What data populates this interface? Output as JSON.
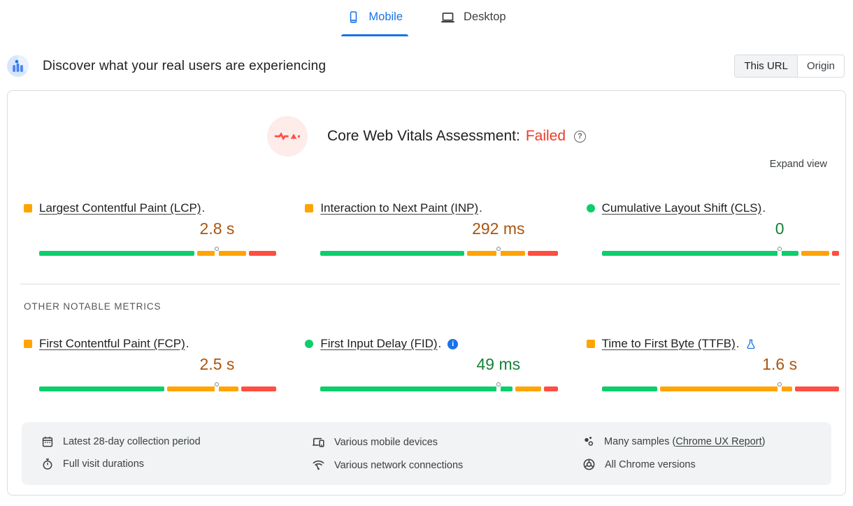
{
  "tabs": [
    {
      "label": "Mobile",
      "active": true
    },
    {
      "label": "Desktop",
      "active": false
    }
  ],
  "header": {
    "title": "Discover what your real users are experiencing",
    "scope_options": [
      "This URL",
      "Origin"
    ],
    "selected_scope": "This URL"
  },
  "assessment": {
    "title": "Core Web Vitals Assessment:",
    "result": "Failed",
    "result_color": "#eb3b28",
    "help_glyph": "?",
    "expand_label": "Expand view"
  },
  "section_label": "OTHER NOTABLE METRICS",
  "colors": {
    "good": "#0cce6b",
    "needs_improvement": "#ffa400",
    "poor": "#ff4e42",
    "accent_blue": "#1a73e8",
    "value_orange": "#a9550e",
    "value_green": "#188038"
  },
  "core_metrics": [
    {
      "label": "Largest Contentful Paint (LCP)",
      "value": "2.8 s",
      "bullet": "square",
      "bullet_color": "#ffa400",
      "value_color": "#a9550e",
      "distribution": {
        "good": 67,
        "needs_improvement": 21,
        "poor": 12
      },
      "p75": 0.75
    },
    {
      "label": "Interaction to Next Paint (INP)",
      "value": "292 ms",
      "bullet": "square",
      "bullet_color": "#ffa400",
      "value_color": "#a9550e",
      "distribution": {
        "good": 62,
        "needs_improvement": 25,
        "poor": 13
      },
      "p75": 0.75
    },
    {
      "label": "Cumulative Layout Shift (CLS)",
      "value": "0",
      "bullet": "circle",
      "bullet_color": "#0cce6b",
      "value_color": "#188038",
      "distribution": {
        "good": 85,
        "needs_improvement": 12,
        "poor": 3
      },
      "p75": 0.75
    }
  ],
  "other_metrics": [
    {
      "label": "First Contentful Paint (FCP)",
      "value": "2.5 s",
      "bullet": "square",
      "bullet_color": "#ffa400",
      "value_color": "#a9550e",
      "distribution": {
        "good": 53,
        "needs_improvement": 30,
        "poor": 15
      },
      "p75": 0.75
    },
    {
      "label": "First Input Delay (FID)",
      "value": "49 ms",
      "bullet": "circle",
      "bullet_color": "#0cce6b",
      "value_color": "#188038",
      "info_glyph": "i",
      "distribution": {
        "good": 83,
        "needs_improvement": 11,
        "poor": 6
      },
      "p75": 0.75
    },
    {
      "label": "Time to First Byte (TTFB)",
      "value": "1.6 s",
      "bullet": "square",
      "bullet_color": "#ffa400",
      "value_color": "#a9550e",
      "experimental": true,
      "distribution": {
        "good": 24,
        "needs_improvement": 57,
        "poor": 19
      },
      "p75": 0.75
    }
  ],
  "footer": {
    "items": [
      {
        "icon": "calendar-icon",
        "text": "Latest 28-day collection period"
      },
      {
        "icon": "stopwatch-icon",
        "text": "Full visit durations"
      },
      {
        "icon": "devices-icon",
        "text": "Various mobile devices"
      },
      {
        "icon": "network-icon",
        "text": "Various network connections"
      },
      {
        "icon": "samples-icon",
        "text_prefix": "Many samples (",
        "link_label": "Chrome UX Report",
        "text_suffix": ")"
      },
      {
        "icon": "chrome-icon",
        "text": "All Chrome versions"
      }
    ]
  }
}
